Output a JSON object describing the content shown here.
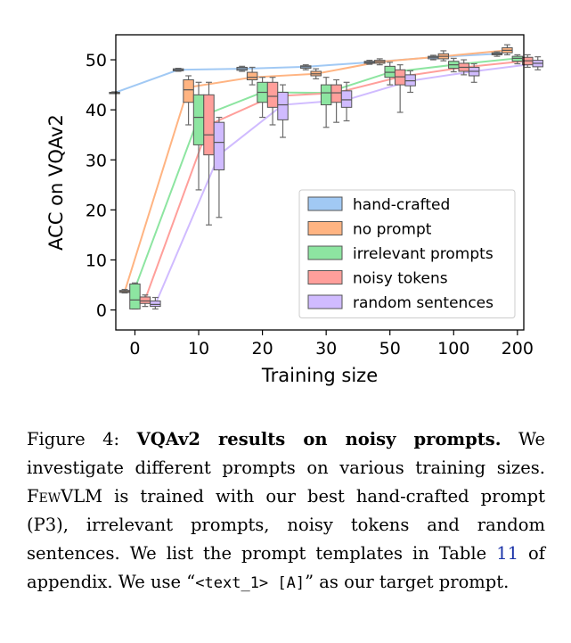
{
  "chart_data": {
    "type": "box",
    "title": "",
    "xlabel": "Training size",
    "ylabel": "ACC on VQAv2",
    "categories": [
      "0",
      "10",
      "20",
      "30",
      "50",
      "100",
      "200"
    ],
    "yticks": [
      "0",
      "10",
      "20",
      "30",
      "40",
      "50"
    ],
    "ylim": [
      -4,
      55
    ],
    "grid": false,
    "legend_position": "lower-right",
    "series": [
      {
        "name": "hand-crafted",
        "color": "#a1c9f4",
        "line": [
          43.4,
          48.0,
          48.2,
          48.6,
          49.5,
          50.5,
          51.2
        ],
        "boxes": [
          {
            "min": 43.3,
            "q1": 43.3,
            "med": 43.4,
            "q3": 43.5,
            "max": 43.6
          },
          {
            "min": 47.7,
            "q1": 47.8,
            "med": 48.0,
            "q3": 48.2,
            "max": 48.3
          },
          {
            "min": 47.7,
            "q1": 47.9,
            "med": 48.2,
            "q3": 48.5,
            "max": 48.7
          },
          {
            "min": 48.0,
            "q1": 48.3,
            "med": 48.6,
            "q3": 48.8,
            "max": 49.0
          },
          {
            "min": 49.1,
            "q1": 49.3,
            "med": 49.5,
            "q3": 49.7,
            "max": 49.9
          },
          {
            "min": 50.0,
            "q1": 50.2,
            "med": 50.5,
            "q3": 50.7,
            "max": 50.9
          },
          {
            "min": 50.7,
            "q1": 51.0,
            "med": 51.2,
            "q3": 51.4,
            "max": 51.6
          }
        ]
      },
      {
        "name": "no prompt",
        "color": "#ffb482",
        "line": [
          3.7,
          44.5,
          46.5,
          47.2,
          49.6,
          50.7,
          51.9
        ],
        "boxes": [
          {
            "min": 3.4,
            "q1": 3.5,
            "med": 3.7,
            "q3": 3.9,
            "max": 4.1
          },
          {
            "min": 37.0,
            "q1": 41.5,
            "med": 44.0,
            "q3": 46.0,
            "max": 46.8
          },
          {
            "min": 45.0,
            "q1": 46.0,
            "med": 46.5,
            "q3": 47.5,
            "max": 48.5
          },
          {
            "min": 46.2,
            "q1": 46.8,
            "med": 47.2,
            "q3": 47.7,
            "max": 48.2
          },
          {
            "min": 49.0,
            "q1": 49.3,
            "med": 49.6,
            "q3": 49.9,
            "max": 50.2
          },
          {
            "min": 49.8,
            "q1": 50.2,
            "med": 50.7,
            "q3": 51.2,
            "max": 51.8
          },
          {
            "min": 51.0,
            "q1": 51.4,
            "med": 51.9,
            "q3": 52.4,
            "max": 53.0
          }
        ]
      },
      {
        "name": "irrelevant prompts",
        "color": "#8de5a1",
        "line": [
          4.3,
          38.5,
          43.5,
          43.4,
          47.5,
          49.0,
          50.3
        ],
        "boxes": [
          {
            "min": 0.2,
            "q1": 0.2,
            "med": 2.0,
            "q3": 5.2,
            "max": 5.4
          },
          {
            "min": 24.0,
            "q1": 33.0,
            "med": 38.5,
            "q3": 43.0,
            "max": 45.5
          },
          {
            "min": 38.5,
            "q1": 41.5,
            "med": 43.5,
            "q3": 45.5,
            "max": 46.5
          },
          {
            "min": 36.5,
            "q1": 41.0,
            "med": 43.4,
            "q3": 45.0,
            "max": 46.5
          },
          {
            "min": 45.0,
            "q1": 46.5,
            "med": 47.5,
            "q3": 48.7,
            "max": 49.5
          },
          {
            "min": 47.6,
            "q1": 48.3,
            "med": 49.0,
            "q3": 49.7,
            "max": 50.3
          },
          {
            "min": 49.2,
            "q1": 49.7,
            "med": 50.3,
            "q3": 50.7,
            "max": 51.0
          }
        ]
      },
      {
        "name": "noisy tokens",
        "color": "#ff9f9b",
        "line": [
          2.1,
          37.0,
          42.7,
          43.4,
          46.6,
          48.5,
          49.8
        ],
        "boxes": [
          {
            "min": 0.7,
            "q1": 1.3,
            "med": 1.8,
            "q3": 2.6,
            "max": 3.0
          },
          {
            "min": 17.0,
            "q1": 31.0,
            "med": 35.0,
            "q3": 43.0,
            "max": 45.5
          },
          {
            "min": 37.0,
            "q1": 40.5,
            "med": 42.7,
            "q3": 45.5,
            "max": 46.5
          },
          {
            "min": 37.5,
            "q1": 41.5,
            "med": 43.4,
            "q3": 45.0,
            "max": 46.0
          },
          {
            "min": 39.5,
            "q1": 45.0,
            "med": 46.6,
            "q3": 48.0,
            "max": 49.0
          },
          {
            "min": 47.0,
            "q1": 47.7,
            "med": 48.5,
            "q3": 49.3,
            "max": 50.0
          },
          {
            "min": 48.5,
            "q1": 49.0,
            "med": 49.8,
            "q3": 50.5,
            "max": 51.0
          }
        ]
      },
      {
        "name": "random sentences",
        "color": "#d0bbff",
        "line": [
          1.1,
          31.0,
          41.0,
          42.0,
          45.8,
          47.7,
          49.3
        ],
        "boxes": [
          {
            "min": 0.2,
            "q1": 0.7,
            "med": 1.1,
            "q3": 1.8,
            "max": 2.5
          },
          {
            "min": 18.5,
            "q1": 28.0,
            "med": 33.5,
            "q3": 37.5,
            "max": 38.5
          },
          {
            "min": 34.5,
            "q1": 38.0,
            "med": 41.0,
            "q3": 43.5,
            "max": 45.0
          },
          {
            "min": 37.8,
            "q1": 40.5,
            "med": 42.0,
            "q3": 43.8,
            "max": 45.5
          },
          {
            "min": 43.5,
            "q1": 44.8,
            "med": 45.8,
            "q3": 47.0,
            "max": 47.8
          },
          {
            "min": 45.5,
            "q1": 46.8,
            "med": 47.7,
            "q3": 48.5,
            "max": 49.2
          },
          {
            "min": 48.0,
            "q1": 48.6,
            "med": 49.3,
            "q3": 49.9,
            "max": 50.6
          }
        ]
      }
    ]
  },
  "caption": {
    "figure_label": "Figure 4:",
    "title": "VQAv2 results on noisy prompts.",
    "text_1": "We investigate different prompts on various training sizes.",
    "model_name": "FewVLM",
    "text_2": "is trained with our best hand-crafted prompt (P3), irrelevant prompts, noisy tokens and random sentences. We list the prompt templates in Table",
    "table_ref": "11",
    "text_3": "of appendix. We use “",
    "target_prompt": "<text_1> [A]",
    "text_4": "” as our target prompt."
  }
}
